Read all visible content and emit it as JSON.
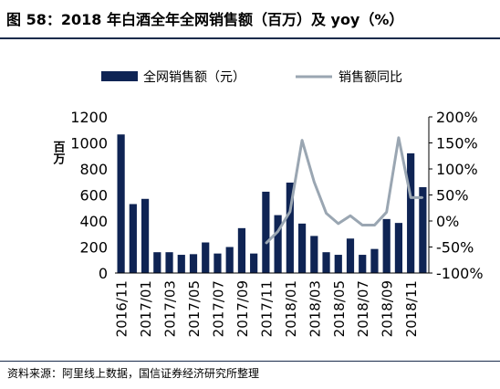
{
  "figure": {
    "title": "图 58：2018 年白酒全年全网销售额（百万）及 yoy（%）",
    "source": "资料来源：阿里线上数据，国信证券经济研究所整理"
  },
  "chart_data": {
    "type": "bar",
    "title": "",
    "categories": [
      "2016/11",
      "2016/12",
      "2017/01",
      "2017/02",
      "2017/03",
      "2017/04",
      "2017/05",
      "2017/06",
      "2017/07",
      "2017/08",
      "2017/09",
      "2017/10",
      "2017/11",
      "2017/12",
      "2018/01",
      "2018/02",
      "2018/03",
      "2018/04",
      "2018/05",
      "2018/06",
      "2018/07",
      "2018/08",
      "2018/09",
      "2018/10",
      "2018/11",
      "2018/12"
    ],
    "tick_labels": [
      "2016/11",
      "2017/01",
      "2017/03",
      "2017/05",
      "2017/07",
      "2017/09",
      "2017/11",
      "2018/01",
      "2018/03",
      "2018/05",
      "2018/07",
      "2018/09",
      "2018/11"
    ],
    "series": [
      {
        "name": "全网销售额（元）",
        "type": "bar",
        "axis": "left",
        "color": "#0f2454",
        "values": [
          1065,
          530,
          570,
          160,
          160,
          140,
          145,
          235,
          150,
          200,
          345,
          150,
          625,
          445,
          695,
          380,
          285,
          160,
          140,
          265,
          140,
          185,
          415,
          385,
          920,
          660
        ]
      },
      {
        "name": "销售额同比",
        "type": "line",
        "axis": "right",
        "color": "#9aa6b2",
        "values": [
          null,
          null,
          null,
          null,
          null,
          null,
          null,
          null,
          null,
          null,
          null,
          null,
          -43,
          -20,
          18,
          155,
          75,
          15,
          -5,
          10,
          -8,
          -8,
          17,
          160,
          45,
          45
        ]
      }
    ],
    "ylabel": "百万",
    "ylim": [
      0,
      1200
    ],
    "y_ticks": [
      "0",
      "200",
      "400",
      "600",
      "800",
      "1000",
      "1200"
    ],
    "y2lim": [
      -100,
      200
    ],
    "y2_ticks": [
      "-100%",
      "-50%",
      "0%",
      "50%",
      "100%",
      "150%",
      "200%"
    ],
    "legend": {
      "position": "top"
    },
    "grid": false
  }
}
